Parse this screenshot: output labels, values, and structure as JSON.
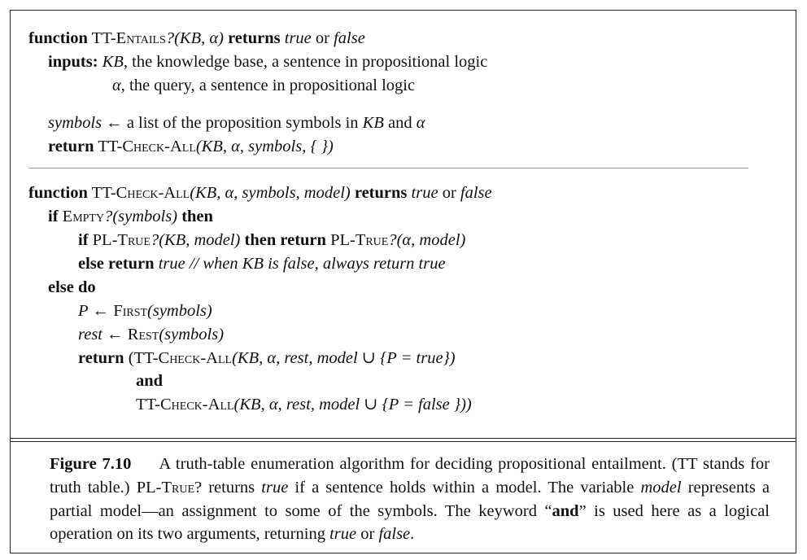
{
  "f1": {
    "l1": {
      "kw_function": "function",
      "name_prefix": "TT-E",
      "name_sc": "ntails",
      "sig_args": "?(KB, α)",
      "kw_returns": "returns",
      "v_true": "true",
      "or": "or",
      "v_false": "false"
    },
    "l2": {
      "kw_inputs": "inputs",
      "colon": ":",
      "kb": "KB",
      "desc": ", the knowledge base, a sentence in propositional logic"
    },
    "l3": {
      "alpha": "α",
      "desc": ", the query, a sentence in propositional logic"
    },
    "l4": {
      "symbols": "symbols",
      "arrow": "←",
      "desc": "a list of the proposition symbols in",
      "kb": "KB",
      "and": "and",
      "alpha": "α"
    },
    "l5": {
      "kw_return": "return",
      "call_prefix": "TT-C",
      "call_sc": "heck",
      "dash": "-A",
      "call_sc2": "ll",
      "args": "(KB, α, symbols, { })"
    }
  },
  "f2": {
    "l1": {
      "kw_function": "function",
      "name_prefix": "TT-C",
      "name_sc": "heck",
      "dash": "-A",
      "name_sc2": "ll",
      "args": "(KB, α, symbols, model)",
      "kw_returns": "returns",
      "v_true": "true",
      "or": "or",
      "v_false": "false"
    },
    "l2": {
      "kw_if": "if",
      "empty_prefix": "E",
      "empty_sc": "mpty",
      "args": "?(symbols)",
      "kw_then": "then"
    },
    "l3": {
      "kw_if": "if",
      "pl_prefix": "PL-T",
      "pl_sc": "rue",
      "args1": "?(KB, model)",
      "kw_then_return": "then return",
      "pl2_prefix": "PL-T",
      "pl2_sc": "rue",
      "args2": "?(α, model)"
    },
    "l4": {
      "kw_else_return": "else return",
      "v_true": "true",
      "comment_slashes": "//",
      "comment": "when KB is false, always return true"
    },
    "l5": {
      "kw_else_do": "else do"
    },
    "l6": {
      "p": "P",
      "arrow": "←",
      "first_prefix": "F",
      "first_sc": "irst",
      "args": "(symbols)"
    },
    "l7": {
      "rest": "rest",
      "arrow": "←",
      "rest_prefix": "R",
      "rest_sc": "est",
      "args": "(symbols)"
    },
    "l8": {
      "kw_return": "return",
      "open": "(TT-C",
      "sc": "heck",
      "dash": "-A",
      "sc2": "ll",
      "args": "(KB, α, rest, model ∪ {P  =  true})"
    },
    "l9": {
      "kw_and": "and"
    },
    "l10": {
      "prefix": "TT-C",
      "sc": "heck",
      "dash": "-A",
      "sc2": "ll",
      "args": "(KB, α, rest, model  ∪ {P  =  false }))"
    }
  },
  "caption": {
    "figure_label": "Figure 7.10",
    "t1": "A truth-table enumeration algorithm for deciding propositional entailment. (TT stands for truth table.) PL-T",
    "t1_sc": "rue",
    "t2": "? returns ",
    "t2_i": "true",
    "t3": " if a sentence holds within a model. The variable ",
    "t3_i": "model",
    "t4": " represents a partial model—an assignment to some of the symbols. The keyword “",
    "t4_b": "and",
    "t5": "” is used here as a logical operation on its two arguments, returning ",
    "t5_i": "true",
    "t6": " or ",
    "t6_i": "false",
    "t7": "."
  }
}
